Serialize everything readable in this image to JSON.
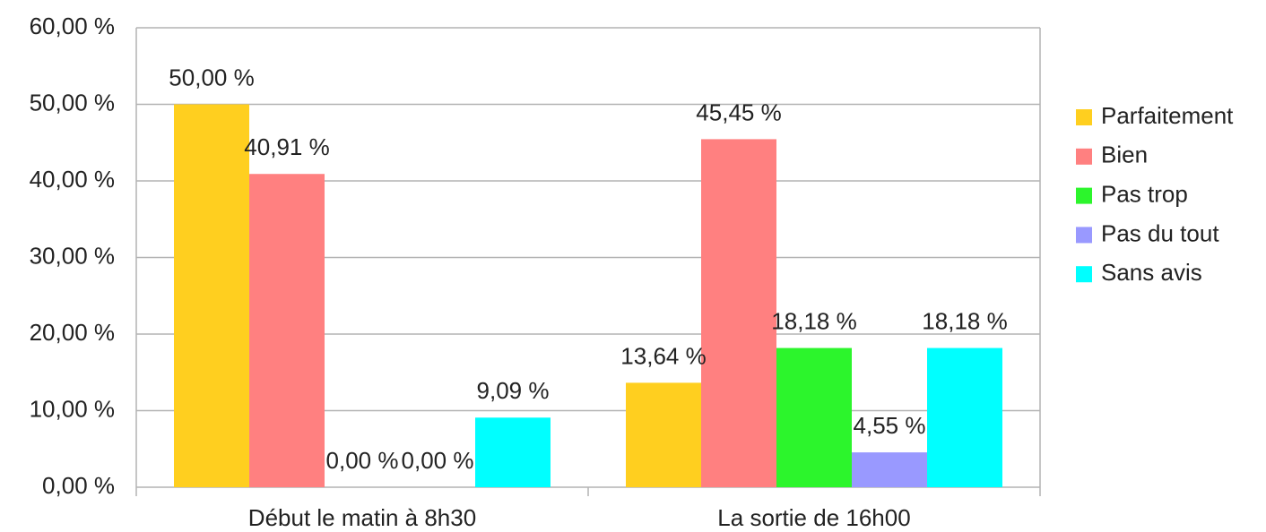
{
  "chart_data": {
    "type": "bar",
    "categories": [
      "Début le matin à 8h30",
      "La sortie de 16h00"
    ],
    "series": [
      {
        "name": "Parfaitement",
        "color": "#ffcf1f",
        "values": [
          50,
          13.64
        ],
        "value_labels": [
          "50,00 %",
          "13,64 %"
        ]
      },
      {
        "name": "Bien",
        "color": "#ff8080",
        "values": [
          40.91,
          45.45
        ],
        "value_labels": [
          "40,91 %",
          "45,45 %"
        ]
      },
      {
        "name": "Pas trop",
        "color": "#2cf52c",
        "values": [
          0,
          18.18
        ],
        "value_labels": [
          "0,00 %",
          "18,18 %"
        ]
      },
      {
        "name": "Pas du tout",
        "color": "#9999ff",
        "values": [
          0,
          4.55
        ],
        "value_labels": [
          "0,00 %",
          "4,55 %"
        ]
      },
      {
        "name": "Sans avis",
        "color": "#00ffff",
        "values": [
          9.09,
          18.18
        ],
        "value_labels": [
          "9,09 %",
          "18,18 %"
        ]
      }
    ],
    "ylim": [
      0,
      60
    ],
    "yticks": [
      {
        "value": 0,
        "label": "0,00 %"
      },
      {
        "value": 10,
        "label": "10,00 %"
      },
      {
        "value": 20,
        "label": "20,00 %"
      },
      {
        "value": 30,
        "label": "30,00 %"
      },
      {
        "value": 40,
        "label": "40,00 %"
      },
      {
        "value": 50,
        "label": "50,00 %"
      },
      {
        "value": 60,
        "label": "60,00 %"
      }
    ],
    "grid": true,
    "legend": "right"
  }
}
